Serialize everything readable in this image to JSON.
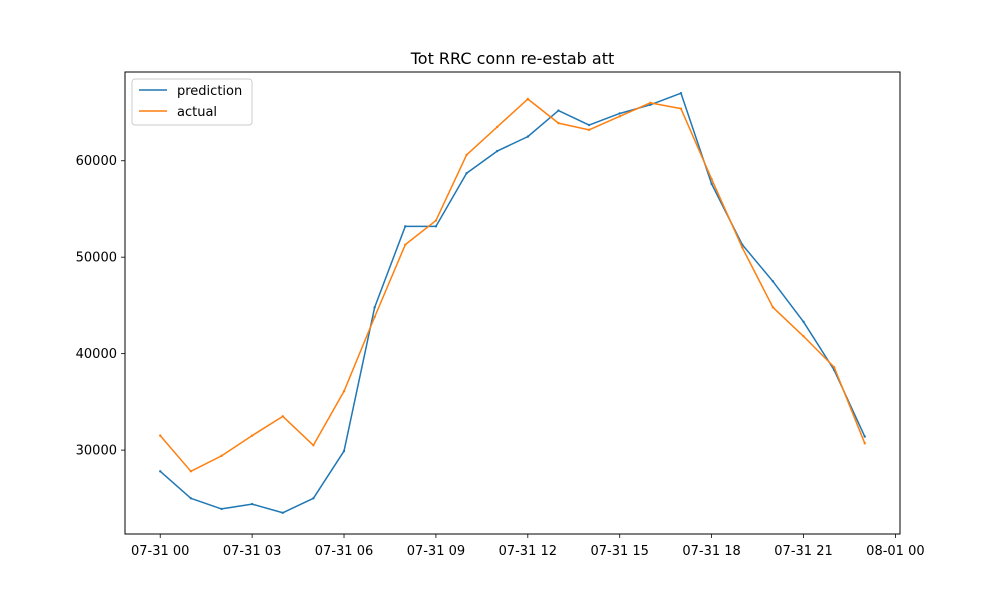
{
  "chart_data": {
    "type": "line",
    "title": "Tot RRC conn re-estab att",
    "xlabel": "",
    "ylabel": "",
    "x": [
      "07-31 00",
      "07-31 01",
      "07-31 02",
      "07-31 03",
      "07-31 04",
      "07-31 05",
      "07-31 06",
      "07-31 07",
      "07-31 08",
      "07-31 09",
      "07-31 10",
      "07-31 11",
      "07-31 12",
      "07-31 13",
      "07-31 14",
      "07-31 15",
      "07-31 16",
      "07-31 17",
      "07-31 18",
      "07-31 19",
      "07-31 20",
      "07-31 21",
      "07-31 22",
      "07-31 23"
    ],
    "x_ticks": [
      "07-31 00",
      "07-31 03",
      "07-31 06",
      "07-31 09",
      "07-31 12",
      "07-31 15",
      "07-31 18",
      "07-31 21",
      "08-01 00"
    ],
    "y_ticks": [
      30000,
      40000,
      50000,
      60000
    ],
    "xlim_hours": [
      -1.15,
      24.15
    ],
    "ylim": [
      21300,
      69200
    ],
    "grid": false,
    "legend_position": "upper-left",
    "series": [
      {
        "name": "prediction",
        "color": "#1f77b4",
        "values": [
          27800,
          25000,
          23900,
          24400,
          23500,
          25000,
          29900,
          44800,
          53200,
          53200,
          58700,
          61000,
          62500,
          65200,
          63700,
          64900,
          65800,
          67000,
          57600,
          51300,
          47500,
          43300,
          38300,
          31400
        ]
      },
      {
        "name": "actual",
        "color": "#ff7f0e",
        "values": [
          31500,
          27800,
          29400,
          31500,
          33500,
          30500,
          36100,
          43800,
          51300,
          53800,
          60600,
          63500,
          66400,
          63900,
          63200,
          64600,
          66000,
          65400,
          58100,
          51000,
          44800,
          41800,
          38600,
          30700
        ]
      }
    ]
  }
}
